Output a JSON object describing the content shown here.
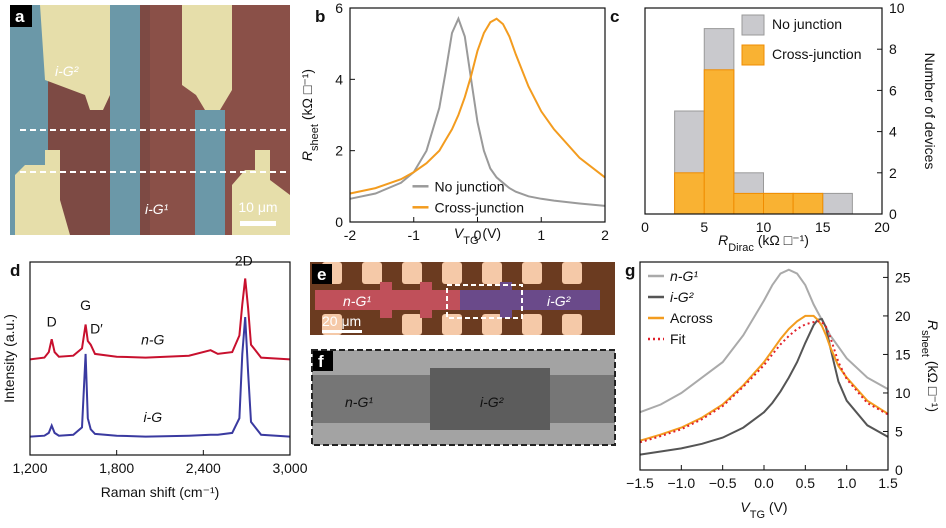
{
  "panels": {
    "a": {
      "letter": "a",
      "labels": [
        "i-G²",
        "i-G¹"
      ],
      "scale_bar": "10 μm"
    },
    "e": {
      "letter": "e",
      "labels": [
        "n-G¹",
        "i-G²"
      ],
      "scale_bar": "20 μm"
    },
    "f": {
      "letter": "f",
      "labels": [
        "n-G¹",
        "i-G²"
      ]
    }
  },
  "chart_data": [
    {
      "type": "line",
      "panel": "b",
      "x": [
        -2,
        -1.6,
        -1.2,
        -1,
        -0.8,
        -0.6,
        -0.5,
        -0.4,
        -0.3,
        -0.2,
        -0.1,
        0,
        0.1,
        0.2,
        0.3,
        0.4,
        0.5,
        0.6,
        0.8,
        1,
        1.2,
        1.6,
        2
      ],
      "series": [
        {
          "name": "No junction",
          "color": "#9a9a9a",
          "values": [
            0.65,
            0.8,
            1.1,
            1.4,
            2.0,
            3.2,
            4.2,
            5.3,
            5.7,
            5.2,
            4.0,
            2.8,
            2.0,
            1.5,
            1.25,
            1.1,
            0.95,
            0.85,
            0.72,
            0.65,
            0.6,
            0.52,
            0.45
          ]
        },
        {
          "name": "Cross-junction",
          "color": "#f39c1f",
          "values": [
            0.8,
            0.95,
            1.2,
            1.4,
            1.65,
            2.0,
            2.3,
            2.6,
            3.0,
            3.5,
            4.1,
            4.8,
            5.3,
            5.6,
            5.7,
            5.55,
            5.2,
            4.7,
            3.8,
            3.1,
            2.6,
            1.8,
            1.25
          ]
        }
      ],
      "xlim": [
        -2,
        2
      ],
      "xticks": [
        -2,
        -1,
        0,
        1,
        2
      ],
      "ylim": [
        0,
        6
      ],
      "yticks": [
        0,
        2,
        4,
        6
      ],
      "xlabel": [
        "V",
        "TG",
        " (V)"
      ],
      "ylabel": [
        "R",
        "sheet",
        " (kΩ □⁻¹)"
      ],
      "legend": "lower center"
    },
    {
      "type": "histogram",
      "panel": "c",
      "bins": [
        2.5,
        5,
        7.5,
        10,
        12.5,
        15,
        17.5
      ],
      "series": [
        {
          "name": "No junction",
          "color": "#c9c9cd",
          "values": [
            5,
            9,
            2,
            1,
            1,
            1
          ]
        },
        {
          "name": "Cross-junction",
          "color": "#f9b233",
          "values": [
            2,
            7,
            1,
            1,
            1,
            0
          ]
        }
      ],
      "xlim": [
        0,
        20
      ],
      "xticks": [
        0,
        5,
        10,
        15,
        20
      ],
      "ylim": [
        0,
        10
      ],
      "yticks": [
        0,
        2,
        4,
        6,
        8,
        10
      ],
      "yaxis_side": "right",
      "xlabel": [
        "R",
        "Dirac",
        " (kΩ □⁻¹)"
      ],
      "ylabel": "Number of devices",
      "legend": "upper right"
    },
    {
      "type": "line",
      "panel": "d",
      "x": [
        1200,
        1300,
        1330,
        1350,
        1370,
        1400,
        1500,
        1560,
        1585,
        1600,
        1620,
        1650,
        1800,
        2000,
        2300,
        2450,
        2500,
        2600,
        2650,
        2670,
        2690,
        2710,
        2730,
        2800,
        3000
      ],
      "series": [
        {
          "color": "#c8102e",
          "values": [
            5.2,
            5.3,
            5.6,
            6.3,
            5.6,
            5.35,
            5.4,
            5.8,
            7.1,
            6.2,
            6.0,
            5.5,
            5.35,
            5.3,
            5.4,
            5.7,
            5.5,
            5.6,
            6.5,
            8.2,
            9.6,
            8.0,
            6.0,
            5.3,
            5.2
          ]
        },
        {
          "color": "#3a3aa0",
          "values": [
            1.0,
            1.05,
            1.2,
            1.6,
            1.2,
            1.05,
            1.1,
            1.5,
            5.5,
            2.0,
            1.4,
            1.15,
            1.05,
            1.0,
            1.05,
            1.1,
            1.1,
            1.2,
            2.0,
            5.5,
            7.5,
            4.5,
            1.8,
            1.1,
            1.0
          ]
        }
      ],
      "xlim": [
        1200,
        3000
      ],
      "xticks": [
        {
          "value": 1200,
          "label": "1,200"
        },
        {
          "value": 1800,
          "label": "1,800"
        },
        {
          "value": 2400,
          "label": "2,400"
        },
        {
          "value": 3000,
          "label": "3,000"
        }
      ],
      "ylim": [
        0,
        10.5
      ],
      "xlabel": "Raman shift (cm⁻¹)",
      "ylabel": "Intensity (a.u.)",
      "annotations": [
        {
          "text": "D",
          "x": 1350,
          "y": 7.0,
          "color": "#1a7fc1"
        },
        {
          "text": "G",
          "x": 1585,
          "y": 7.9,
          "color": "#1a7fc1"
        },
        {
          "text": "D′",
          "x": 1660,
          "y": 6.6,
          "color": "#1a7fc1"
        },
        {
          "text": "2D",
          "x": 2680,
          "y": 10.3,
          "color": "#1a7fc1"
        },
        {
          "text": "n-G",
          "x": 2050,
          "y": 6.0,
          "color": "#444444"
        },
        {
          "text": "i-G",
          "x": 2050,
          "y": 1.8,
          "color": "#444444"
        }
      ]
    },
    {
      "type": "line",
      "panel": "g",
      "x": [
        -1.5,
        -1.25,
        -1,
        -0.75,
        -0.5,
        -0.25,
        0,
        0.1,
        0.2,
        0.3,
        0.4,
        0.5,
        0.6,
        0.65,
        0.7,
        0.75,
        0.8,
        0.9,
        1,
        1.25,
        1.5
      ],
      "series": [
        {
          "name": "n-G¹",
          "color": "#aaaaaa",
          "values": [
            7.5,
            8.5,
            10,
            12,
            14,
            17.5,
            22,
            24,
            25.5,
            26,
            25.5,
            24,
            21.5,
            20.5,
            19.5,
            18.5,
            17.5,
            16,
            14.5,
            12,
            10.5
          ]
        },
        {
          "name": "i-G²",
          "color": "#555555",
          "values": [
            2,
            2.4,
            2.8,
            3.4,
            4.2,
            5.5,
            7.5,
            8.7,
            10.2,
            12,
            14,
            16.5,
            18.8,
            19.5,
            19.6,
            18.5,
            16,
            11.5,
            9,
            5.8,
            4.3
          ]
        },
        {
          "name": "Across",
          "color": "#f39c1f",
          "values": [
            3.8,
            4.6,
            5.5,
            6.8,
            8.5,
            11,
            14,
            15.5,
            17,
            18.3,
            19.3,
            20,
            20,
            19.5,
            18.7,
            17.5,
            16,
            13.5,
            12,
            9,
            7.3
          ]
        },
        {
          "name": "Fit",
          "color": "#e0202a",
          "dash": "dotted",
          "values": [
            3.6,
            4.4,
            5.3,
            6.6,
            8.3,
            10.8,
            13.6,
            15,
            16.3,
            17.4,
            18.3,
            18.9,
            19.2,
            19.3,
            19.2,
            18.6,
            17.3,
            14,
            11.8,
            8.7,
            7.2
          ]
        }
      ],
      "xlim": [
        -1.5,
        1.5
      ],
      "xticks": [
        {
          "value": -1.5,
          "label": "−1.5"
        },
        {
          "value": -1,
          "label": "−1.0"
        },
        {
          "value": -0.5,
          "label": "−0.5"
        },
        {
          "value": 0,
          "label": "0.0"
        },
        {
          "value": 0.5,
          "label": "0.5"
        },
        {
          "value": 1,
          "label": "1.0"
        },
        {
          "value": 1.5,
          "label": "1.5"
        }
      ],
      "ylim": [
        0,
        27
      ],
      "yticks": [
        0,
        5,
        10,
        15,
        20,
        25
      ],
      "yaxis_side": "right",
      "xlabel": [
        "V",
        "TG",
        " (V)"
      ],
      "ylabel": [
        "R",
        "sheet",
        " (kΩ □⁻¹)"
      ],
      "legend": "upper left"
    }
  ]
}
